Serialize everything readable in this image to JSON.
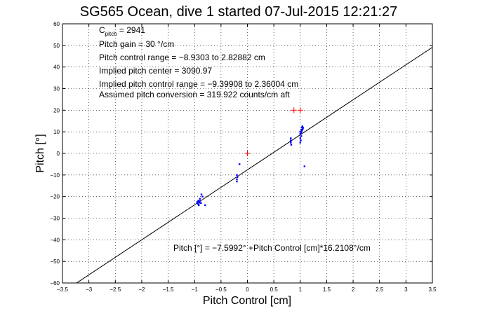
{
  "chart_data": {
    "type": "scatter",
    "title": "SG565 Ocean, dive 1 started 07-Jul-2015 12:21:27",
    "xlabel": "Pitch Control [cm]",
    "ylabel": "Pitch [°]",
    "xlim": [
      -3.5,
      3.5
    ],
    "ylim": [
      -60,
      60
    ],
    "xticks": [
      -3.5,
      -3,
      -2.5,
      -2,
      -1.5,
      -1,
      -0.5,
      0,
      0.5,
      1,
      1.5,
      2,
      2.5,
      3,
      3.5
    ],
    "xtick_labels": [
      "−3.5",
      "−3",
      "−2.5",
      "−2",
      "−1.5",
      "−1",
      "−0.5",
      "0",
      "0.5",
      "1",
      "1.5",
      "2",
      "2.5",
      "3",
      "3.5"
    ],
    "yticks": [
      -60,
      -50,
      -40,
      -30,
      -20,
      -10,
      0,
      10,
      20,
      30,
      40,
      50,
      60
    ],
    "ytick_labels": [
      "−60",
      "−50",
      "−40",
      "−30",
      "−20",
      "−10",
      "0",
      "10",
      "20",
      "30",
      "40",
      "50",
      "60"
    ],
    "grid": true,
    "annotations": {
      "cpitch_prefix": "C",
      "cpitch_sub": "pitch",
      "cpitch_value": " = 2941",
      "pitch_gain": "Pitch gain = 30 °/cm",
      "control_range": "Pitch control range = −8.9303 to 2.82882 cm",
      "implied_center": "Implied pitch center = 3090.97",
      "implied_range": "Implied pitch control range = −9.39908 to 2.36004 cm",
      "conversion": "Assumed pitch conversion = 319.922 counts/cm aft",
      "fit_equation": "Pitch [°] = −7.5992° +Pitch Control [cm]*16.2108°/cm"
    },
    "series": [
      {
        "color": "#0000ff",
        "marker": "dot",
        "points": [
          [
            -0.95,
            -23
          ],
          [
            -0.93,
            -22
          ],
          [
            -0.92,
            -24
          ],
          [
            -0.9,
            -21
          ],
          [
            -0.88,
            -23
          ],
          [
            -0.95,
            -22.5
          ],
          [
            -0.9,
            -22
          ],
          [
            -0.85,
            -20
          ],
          [
            -0.87,
            -19
          ],
          [
            -0.8,
            -24
          ],
          [
            -0.93,
            -23.5
          ],
          [
            -0.91,
            -22.8
          ],
          [
            -0.2,
            -13
          ],
          [
            -0.2,
            -12
          ],
          [
            -0.19,
            -11
          ],
          [
            -0.2,
            -10
          ],
          [
            -0.15,
            -5
          ],
          [
            0.82,
            5
          ],
          [
            0.82,
            6
          ],
          [
            0.82,
            7
          ],
          [
            0.83,
            4
          ],
          [
            0.82,
            5.5
          ],
          [
            1.0,
            10
          ],
          [
            1.0,
            9
          ],
          [
            1.02,
            11
          ],
          [
            1.03,
            12
          ],
          [
            1.05,
            11.5
          ],
          [
            1.04,
            12.5
          ],
          [
            1.02,
            8
          ],
          [
            1.0,
            7
          ],
          [
            1.01,
            6
          ],
          [
            1.0,
            5
          ],
          [
            1.03,
            10.5
          ],
          [
            1.05,
            12
          ],
          [
            1.02,
            9.5
          ],
          [
            1.04,
            11
          ],
          [
            1.08,
            -6
          ]
        ]
      },
      {
        "color": "#ff0000",
        "marker": "plus",
        "points": [
          [
            0.0,
            0.0
          ],
          [
            1.0,
            20.0
          ],
          [
            0.88,
            20.0
          ]
        ]
      }
    ],
    "fit_line": {
      "color": "#000000",
      "intercept": -7.5992,
      "slope": 16.2108
    }
  }
}
